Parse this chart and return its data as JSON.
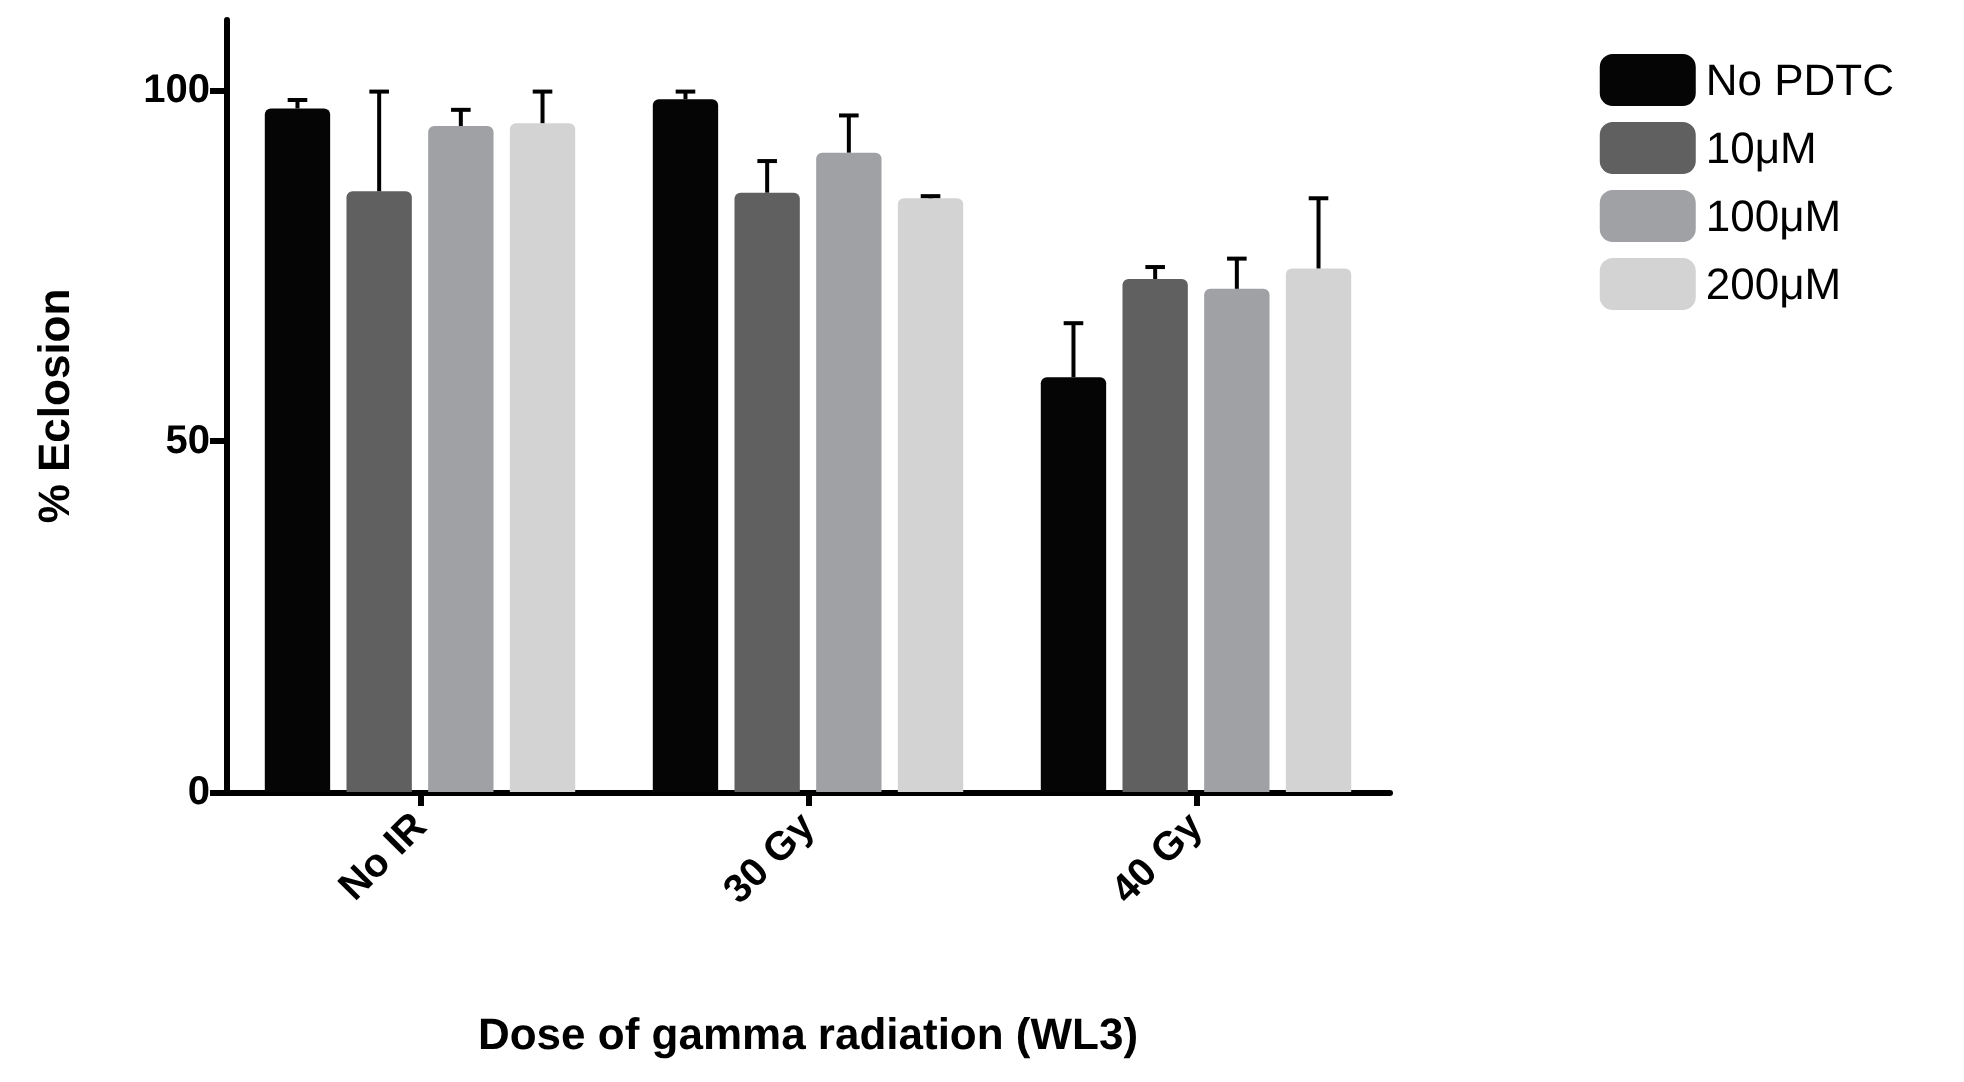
{
  "chart_data": {
    "type": "bar",
    "xlabel": "Dose of gamma radiation (WL3)",
    "ylabel": "% Eclosion",
    "categories": [
      "No IR",
      "30 Gy",
      "40 Gy"
    ],
    "series": [
      {
        "name": "No PDTC",
        "color": "#050505",
        "values": [
          97.4,
          98.7,
          59.1
        ],
        "errors": [
          [
            97.4,
            98.6
          ],
          [
            98.7,
            99.8
          ],
          [
            59.1,
            66.8
          ]
        ]
      },
      {
        "name": "10μM",
        "color": "#606060",
        "values": [
          85.6,
          85.4,
          73.1
        ],
        "errors": [
          [
            85.6,
            99.8
          ],
          [
            85.4,
            89.9
          ],
          [
            73.1,
            74.8
          ]
        ]
      },
      {
        "name": "100μM",
        "color": "#a0a1a4",
        "values": [
          94.9,
          91.1,
          71.7
        ],
        "errors": [
          [
            94.9,
            97.2
          ],
          [
            91.1,
            96.4
          ],
          [
            71.7,
            76.0
          ]
        ]
      },
      {
        "name": "200μM",
        "color": "#d3d3d3",
        "values": [
          95.3,
          84.6,
          74.6
        ],
        "errors": [
          [
            95.3,
            99.8
          ],
          [
            84.6,
            84.9
          ],
          [
            74.6,
            84.6
          ]
        ]
      }
    ],
    "ylim": [
      0,
      110
    ],
    "yticks": [
      0,
      50,
      100
    ],
    "grid": false,
    "legend": "top right"
  }
}
